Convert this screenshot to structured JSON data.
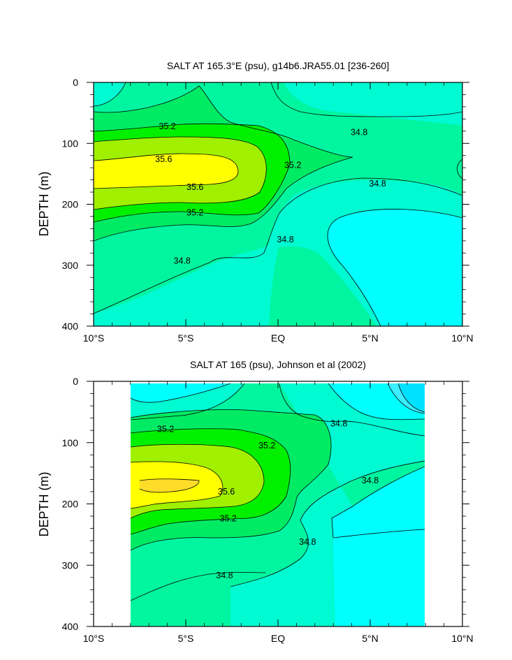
{
  "colors": {
    "lt34_6": "#00ffff",
    "c34_6_34_8": "#00fad2",
    "c34_8_35_0": "#00f5a0",
    "c35_0_35_2": "#00eb64",
    "c35_2_35_4": "#00f000",
    "c35_4_35_6": "#a0f000",
    "c35_6_35_8": "#ffff00",
    "c35_8_36_0": "#ffdc28",
    "dark_cyan": "#00e1ff",
    "mid_cyan": "#3ceeff"
  },
  "chart_data": [
    {
      "type": "contour",
      "title": "SALT AT 165.3°E (psu), g14b6.JRA55.01 [236-260]",
      "xlabel": "",
      "ylabel": "DEPTH (m)",
      "xlim": [
        -10,
        10
      ],
      "ylim": [
        400,
        0
      ],
      "xticks": [
        -10,
        -5,
        0,
        5,
        10
      ],
      "xtick_labels": [
        "10°S",
        "5°S",
        "EQ",
        "5°N",
        "10°N"
      ],
      "yticks": [
        0,
        100,
        200,
        300,
        400
      ],
      "ytick_labels": [
        "0",
        "100",
        "200",
        "300",
        "400"
      ],
      "units": "psu",
      "contour_levels": [
        34.6,
        34.8,
        35.0,
        35.2,
        35.4,
        35.6
      ],
      "contour_labels": [
        {
          "text": "35.2",
          "x": -6.0,
          "y": 72
        },
        {
          "text": "34.8",
          "x": 4.4,
          "y": 82
        },
        {
          "text": "35.6",
          "x": -6.2,
          "y": 126
        },
        {
          "text": "35.2",
          "x": 0.8,
          "y": 136
        },
        {
          "text": "35.6",
          "x": -4.5,
          "y": 172
        },
        {
          "text": "34.8",
          "x": 5.4,
          "y": 166
        },
        {
          "text": "35.2",
          "x": -4.5,
          "y": 214
        },
        {
          "text": "34.8",
          "x": 0.4,
          "y": 258
        },
        {
          "text": "34.8",
          "x": -5.2,
          "y": 293
        }
      ]
    },
    {
      "type": "contour",
      "title": "SALT AT 165 (psu), Johnson et al (2002)",
      "xlabel": "",
      "ylabel": "DEPTH (m)",
      "xlim": [
        -10,
        10
      ],
      "ylim": [
        400,
        0
      ],
      "data_xrange": [
        -8,
        8
      ],
      "xticks": [
        -10,
        -5,
        0,
        5,
        10
      ],
      "xtick_labels": [
        "10°S",
        "5°S",
        "EQ",
        "5°N",
        "10°N"
      ],
      "yticks": [
        0,
        100,
        200,
        300,
        400
      ],
      "ytick_labels": [
        "0",
        "100",
        "200",
        "300",
        "400"
      ],
      "units": "psu",
      "contour_levels": [
        34.4,
        34.6,
        34.8,
        35.0,
        35.2,
        35.4,
        35.6,
        35.8
      ],
      "contour_labels": [
        {
          "text": "35.2",
          "x": -6.1,
          "y": 78
        },
        {
          "text": "34.8",
          "x": 3.3,
          "y": 69
        },
        {
          "text": "35.2",
          "x": -0.6,
          "y": 105
        },
        {
          "text": "34.8",
          "x": 5.0,
          "y": 162
        },
        {
          "text": "35.6",
          "x": -2.8,
          "y": 180
        },
        {
          "text": "35.2",
          "x": -2.7,
          "y": 224
        },
        {
          "text": "34.8",
          "x": 1.6,
          "y": 262
        },
        {
          "text": "34.8",
          "x": -2.9,
          "y": 317
        }
      ]
    }
  ]
}
